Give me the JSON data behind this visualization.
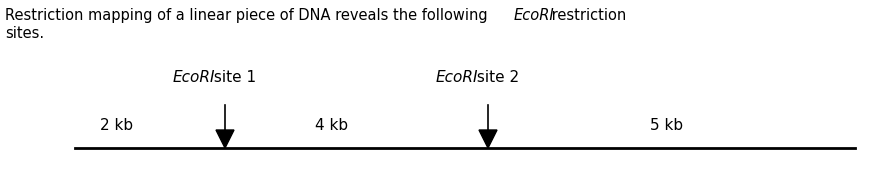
{
  "fig_width": 8.69,
  "fig_height": 1.73,
  "dpi": 100,
  "background_color": "#ffffff",
  "header_fontsize": 10.5,
  "diagram_fontsize": 11.0,
  "line_color": "#000000",
  "line_linewidth": 2.0,
  "arrow_color": "#000000",
  "site1_label_italic": "EcoRI",
  "site1_label_normal": " site 1",
  "site2_label_italic": "EcoRI",
  "site2_label_normal": " site 2",
  "seg_labels": [
    "2 kb",
    "4 kb",
    "5 kb"
  ],
  "header_normal1": "Restriction mapping of a linear piece of DNA reveals the following ",
  "header_italic": "EcoRI",
  "header_normal2": " restriction",
  "header_line2": "sites."
}
